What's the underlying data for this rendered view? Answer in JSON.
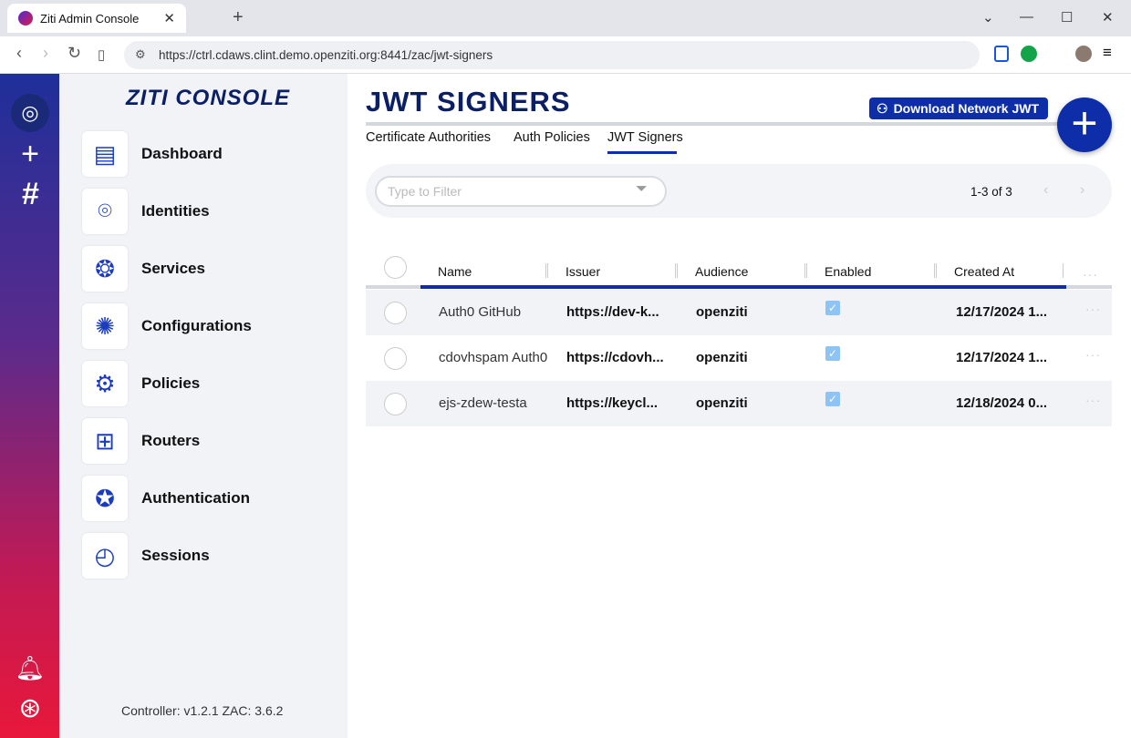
{
  "browser": {
    "tab_title": "Ziti Admin Console",
    "url": "https://ctrl.cdaws.clint.demo.openziti.org:8441/zac/jwt-signers"
  },
  "sidebar": {
    "brand": "ZITI CONSOLE",
    "items": [
      {
        "label": "Dashboard",
        "icon": "dashboard-icon"
      },
      {
        "label": "Identities",
        "icon": "fingerprint-icon"
      },
      {
        "label": "Services",
        "icon": "services-network-icon"
      },
      {
        "label": "Configurations",
        "icon": "configurations-icon"
      },
      {
        "label": "Policies",
        "icon": "policies-gears-icon"
      },
      {
        "label": "Routers",
        "icon": "router-icon"
      },
      {
        "label": "Authentication",
        "icon": "badge-star-icon"
      },
      {
        "label": "Sessions",
        "icon": "clock-icon"
      }
    ],
    "version": "Controller: v1.2.1 ZAC: 3.6.2"
  },
  "page": {
    "title": "JWT SIGNERS",
    "download_label": "Download Network JWT",
    "tabs": [
      "Certificate Authorities",
      "Auth Policies",
      "JWT Signers"
    ],
    "active_tab": "JWT Signers",
    "filter_placeholder": "Type to Filter",
    "pager": "1-3 of 3"
  },
  "table": {
    "columns": [
      "Name",
      "Issuer",
      "Audience",
      "Enabled",
      "Created At"
    ],
    "rows": [
      {
        "name": "Auth0 GitHub",
        "issuer": "https://dev-k...",
        "audience": "openziti",
        "enabled": true,
        "created": "12/17/2024 1..."
      },
      {
        "name": "cdovhspam Auth0",
        "issuer": "https://cdovh...",
        "audience": "openziti",
        "enabled": true,
        "created": "12/17/2024 1..."
      },
      {
        "name": "ejs-zdew-testa",
        "issuer": "https://keycl...",
        "audience": "openziti",
        "enabled": true,
        "created": "12/18/2024 0..."
      }
    ]
  },
  "colors": {
    "accent": "#0d2ea8",
    "title": "#0b1f66",
    "rail_top": "#1f2f9a",
    "rail_bottom": "#e8183a"
  }
}
